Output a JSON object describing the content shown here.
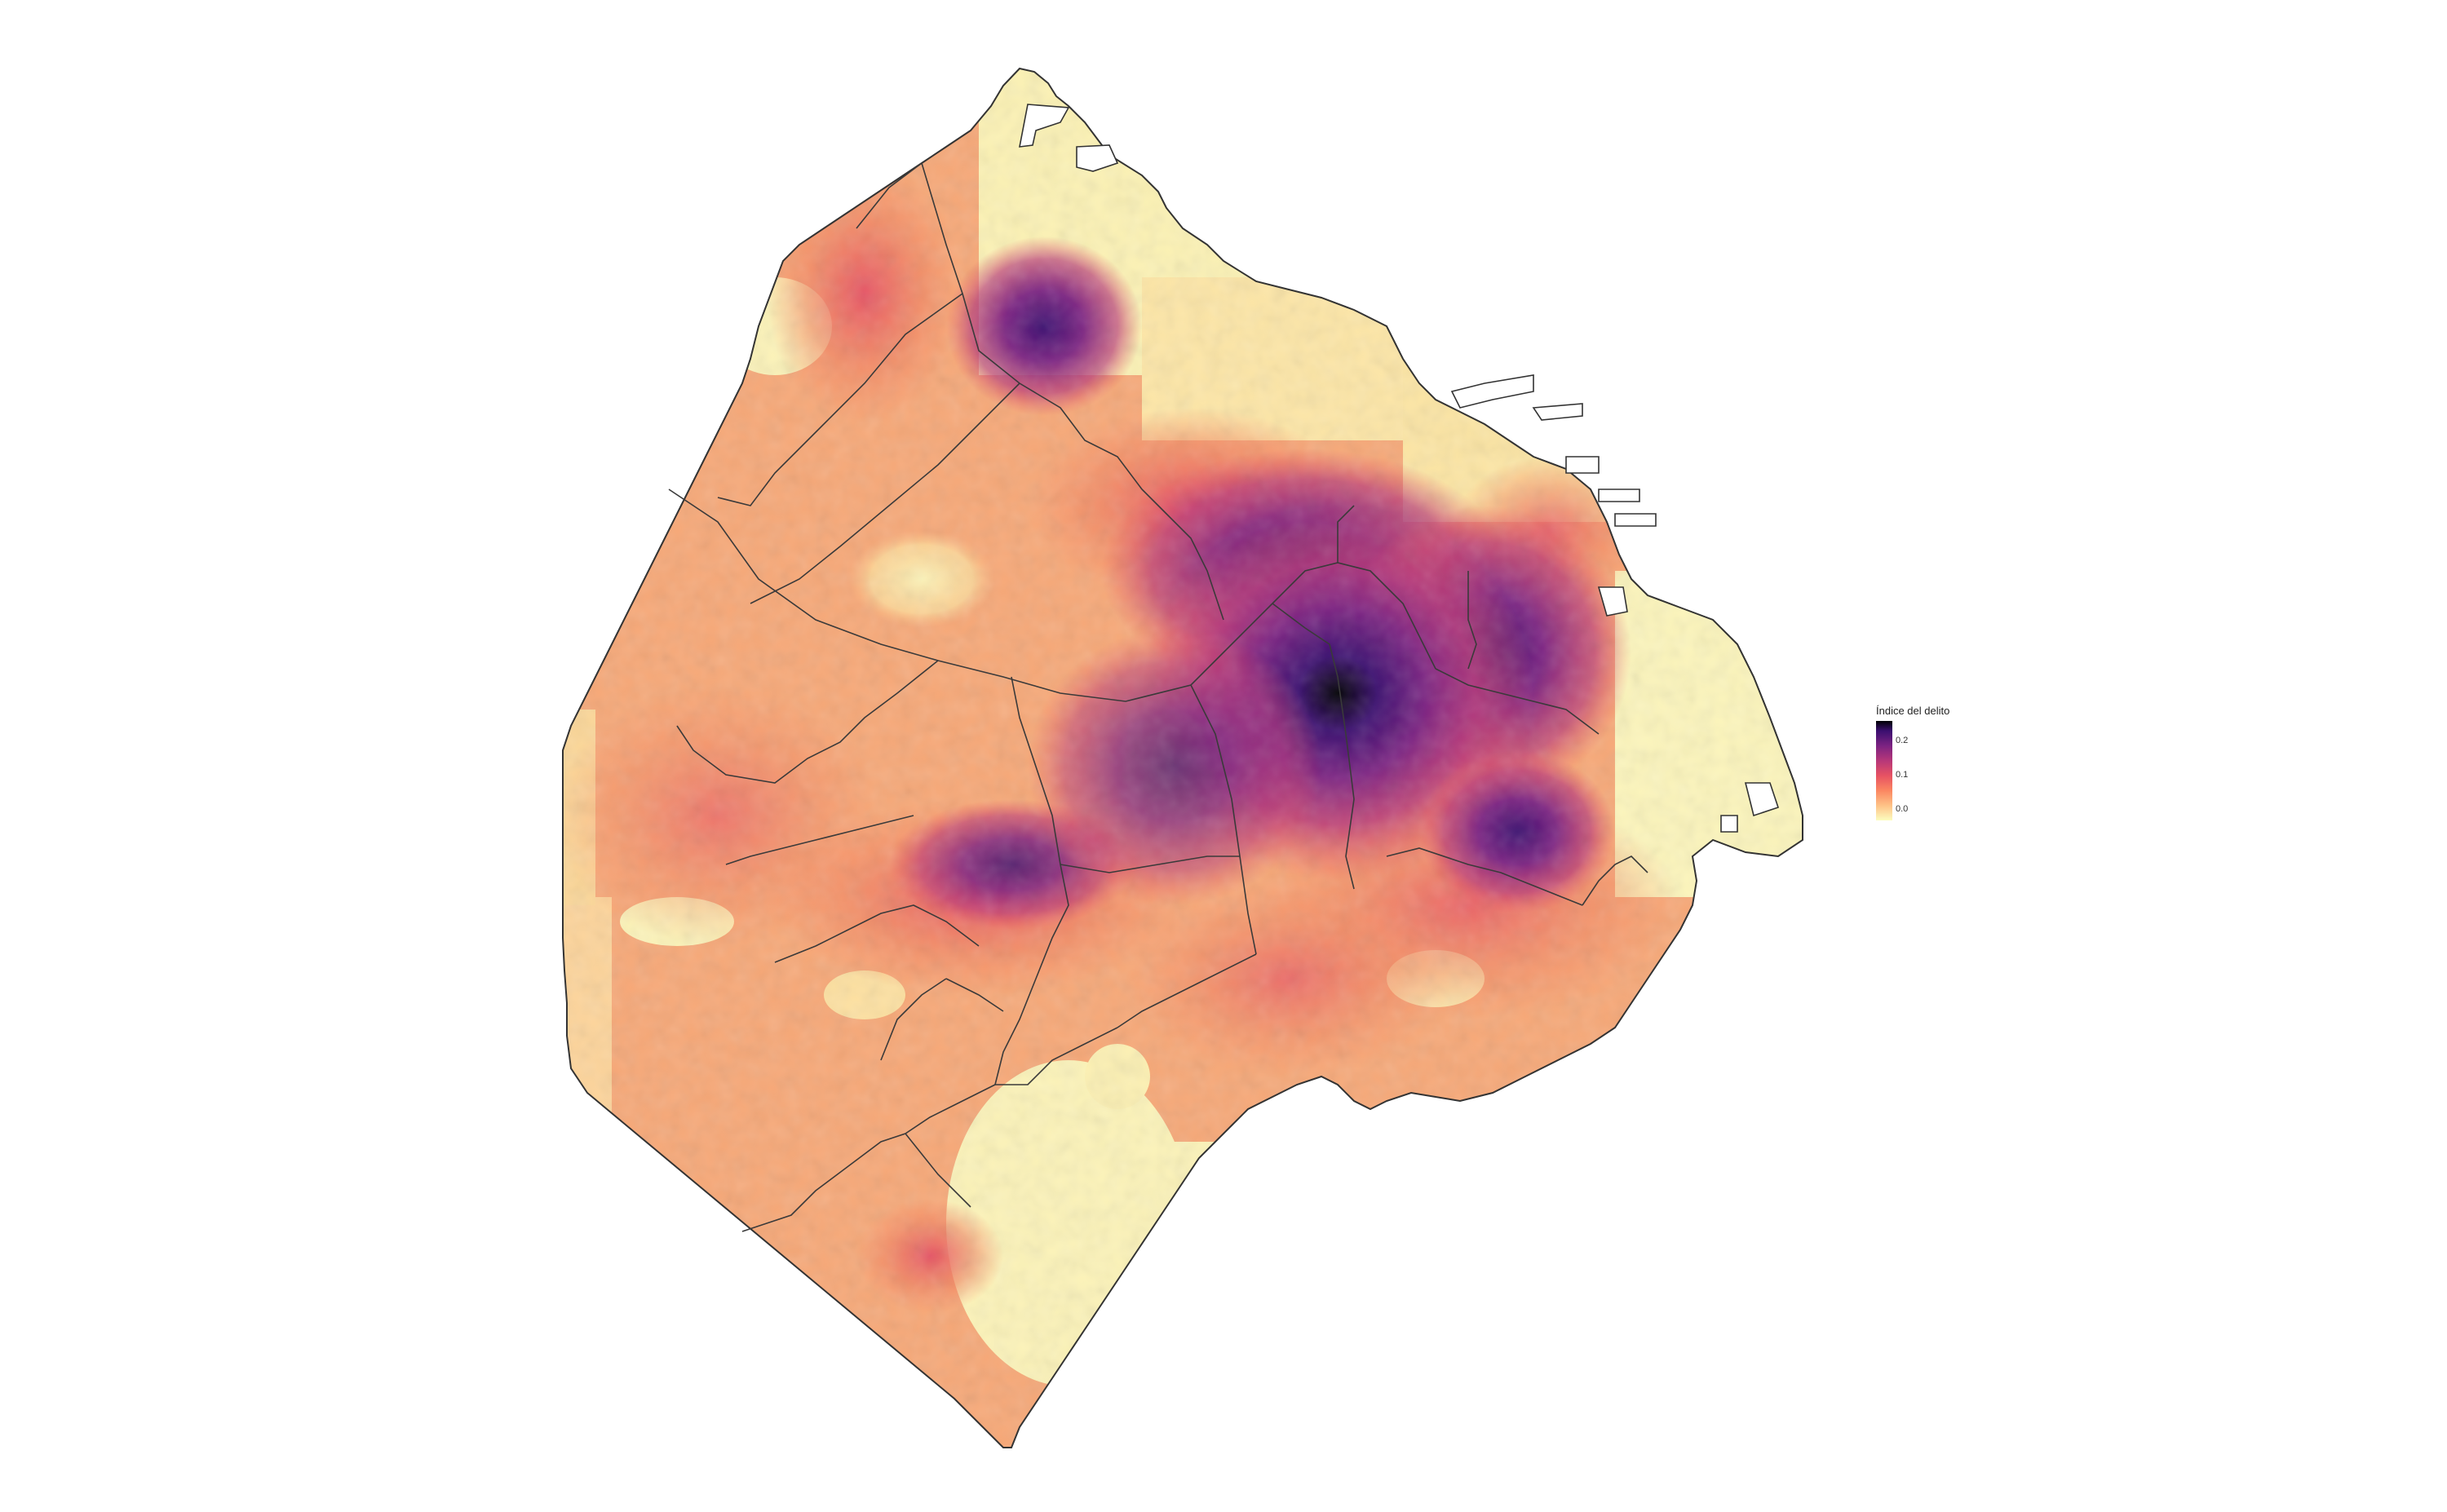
{
  "legend": {
    "title": "Índice del delito",
    "ticks": [
      {
        "label": "0.2",
        "value": 0.2
      },
      {
        "label": "0.1",
        "value": 0.1
      },
      {
        "label": "0.0",
        "value": 0.0
      }
    ],
    "min": 0.0,
    "max": 0.25,
    "palette": [
      "#fcfdbf",
      "#fec287",
      "#fb8761",
      "#e75263",
      "#b73779",
      "#7c2382",
      "#3b0f70",
      "#000004"
    ]
  },
  "map": {
    "region": "city-outline",
    "boundary_color": "#333333",
    "background_color": "#ffffff"
  }
}
